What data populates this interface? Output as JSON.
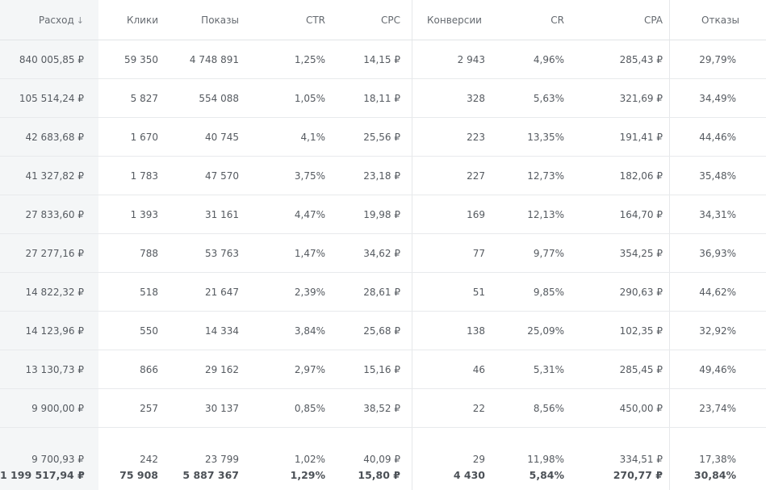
{
  "table": {
    "headers": [
      "Расход",
      "Клики",
      "Показы",
      "CTR",
      "CPC",
      "Конверсии",
      "CR",
      "CPA",
      "Отказы"
    ],
    "sort_arrow": "↓",
    "rows": [
      [
        "840 005,85 ₽",
        "59 350",
        "4 748 891",
        "1,25%",
        "14,15 ₽",
        "2 943",
        "4,96%",
        "285,43 ₽",
        "29,79%"
      ],
      [
        "105 514,24 ₽",
        "5 827",
        "554 088",
        "1,05%",
        "18,11 ₽",
        "328",
        "5,63%",
        "321,69 ₽",
        "34,49%"
      ],
      [
        "42 683,68 ₽",
        "1 670",
        "40 745",
        "4,1%",
        "25,56 ₽",
        "223",
        "13,35%",
        "191,41 ₽",
        "44,46%"
      ],
      [
        "41 327,82 ₽",
        "1 783",
        "47 570",
        "3,75%",
        "23,18 ₽",
        "227",
        "12,73%",
        "182,06 ₽",
        "35,48%"
      ],
      [
        "27 833,60 ₽",
        "1 393",
        "31 161",
        "4,47%",
        "19,98 ₽",
        "169",
        "12,13%",
        "164,70 ₽",
        "34,31%"
      ],
      [
        "27 277,16 ₽",
        "788",
        "53 763",
        "1,47%",
        "34,62 ₽",
        "77",
        "9,77%",
        "354,25 ₽",
        "36,93%"
      ],
      [
        "14 822,32 ₽",
        "518",
        "21 647",
        "2,39%",
        "28,61 ₽",
        "51",
        "9,85%",
        "290,63 ₽",
        "44,62%"
      ],
      [
        "14 123,96 ₽",
        "550",
        "14 334",
        "3,84%",
        "25,68 ₽",
        "138",
        "25,09%",
        "102,35 ₽",
        "32,92%"
      ],
      [
        "13 130,73 ₽",
        "866",
        "29 162",
        "2,97%",
        "15,16 ₽",
        "46",
        "5,31%",
        "285,45 ₽",
        "49,46%"
      ],
      [
        "9 900,00 ₽",
        "257",
        "30 137",
        "0,85%",
        "38,52 ₽",
        "22",
        "8,56%",
        "450,00 ₽",
        "23,74%"
      ],
      [
        "9 700,93 ₽",
        "242",
        "23 799",
        "1,02%",
        "40,09 ₽",
        "29",
        "11,98%",
        "334,51 ₽",
        "17,38%"
      ]
    ],
    "totals": [
      "1 199 517,94 ₽",
      "75 908",
      "5 887 367",
      "1,29%",
      "15,80 ₽",
      "4 430",
      "5,84%",
      "270,77 ₽",
      "30,84%"
    ]
  }
}
